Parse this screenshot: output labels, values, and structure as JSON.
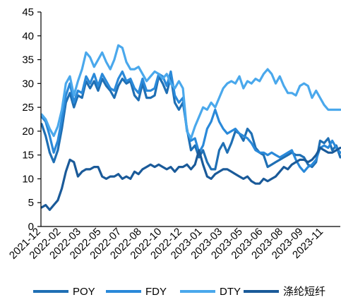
{
  "chart_data": {
    "type": "line",
    "title": "",
    "xlabel": "",
    "ylabel": "",
    "ylim": [
      0,
      45
    ],
    "yticks": [
      0,
      5,
      10,
      15,
      20,
      25,
      30,
      35,
      40,
      45
    ],
    "x_tick_labels": [
      "2021-12",
      "2022-02",
      "2022-03",
      "2022-05",
      "2022-07",
      "2022-08",
      "2022-10",
      "2022-12",
      "2023-01",
      "2023-03",
      "2023-05",
      "2023-06",
      "2023-08",
      "2023-09",
      "2023-11"
    ],
    "grid": false,
    "legend_position": "bottom",
    "series": [
      {
        "name": "POY",
        "color": "#1f6fb4",
        "values": [
          21.5,
          19.0,
          15.5,
          13.5,
          16.0,
          20.5,
          26.0,
          28.0,
          25.0,
          27.5,
          27.0,
          30.5,
          29.0,
          30.5,
          28.5,
          31.0,
          29.5,
          28.5,
          27.0,
          29.5,
          31.0,
          30.0,
          30.5,
          27.5,
          26.5,
          30.0,
          27.0,
          27.0,
          27.5,
          31.5,
          30.0,
          28.0,
          31.5,
          26.0,
          24.5,
          26.0,
          20.5,
          16.0,
          17.0,
          14.5,
          16.0,
          13.5,
          12.0,
          12.0,
          16.0,
          17.5,
          15.5,
          17.5,
          20.0,
          19.5,
          18.0,
          20.5,
          19.5,
          16.5,
          15.5,
          15.0,
          12.5,
          13.0,
          13.5,
          14.0,
          14.5,
          15.0,
          15.5,
          15.0,
          15.0,
          14.5,
          13.0,
          12.5,
          13.5,
          18.0,
          17.5,
          18.5,
          16.0,
          17.0,
          14.5
        ]
      },
      {
        "name": "FDY",
        "color": "#2a89d9",
        "values": [
          23.0,
          22.0,
          19.0,
          15.5,
          18.0,
          22.5,
          27.5,
          30.0,
          26.0,
          28.5,
          28.0,
          31.5,
          30.0,
          32.0,
          29.5,
          32.0,
          30.5,
          29.0,
          28.5,
          31.0,
          32.5,
          30.5,
          31.0,
          29.0,
          28.0,
          31.0,
          28.5,
          28.5,
          29.0,
          32.0,
          31.5,
          29.5,
          32.5,
          27.5,
          26.0,
          27.0,
          20.0,
          18.0,
          18.5,
          15.5,
          17.0,
          20.5,
          22.0,
          24.5,
          22.0,
          20.5,
          19.5,
          20.0,
          20.5,
          19.5,
          19.0,
          18.5,
          17.5,
          16.0,
          15.5,
          15.5,
          15.0,
          15.5,
          15.0,
          14.5,
          15.0,
          15.5,
          16.0,
          14.0,
          12.5,
          11.5,
          12.5,
          13.0,
          14.0,
          16.5,
          17.0,
          16.5,
          18.0,
          16.5,
          15.5
        ]
      },
      {
        "name": "DTY",
        "color": "#4aa8ec",
        "values": [
          23.5,
          22.5,
          20.5,
          19.0,
          21.0,
          24.5,
          30.0,
          31.5,
          27.5,
          30.5,
          33.0,
          36.5,
          35.5,
          33.5,
          35.0,
          36.5,
          34.5,
          33.0,
          35.0,
          38.0,
          37.5,
          34.5,
          33.0,
          33.0,
          33.5,
          32.0,
          30.5,
          31.5,
          32.5,
          32.0,
          31.0,
          32.0,
          30.0,
          29.0,
          30.5,
          29.0,
          20.0,
          18.5,
          21.0,
          23.0,
          25.0,
          24.5,
          26.0,
          25.0,
          27.0,
          29.0,
          30.0,
          30.5,
          30.0,
          31.5,
          29.0,
          30.5,
          30.0,
          31.0,
          30.5,
          32.0,
          33.0,
          32.0,
          30.0,
          31.5,
          29.5,
          28.0,
          28.0,
          27.5,
          29.5,
          30.0,
          29.5,
          27.0,
          28.5,
          27.0,
          25.5,
          24.5,
          24.5,
          24.5,
          24.5
        ]
      },
      {
        "name": "涤纶短纤",
        "color": "#1a5a99",
        "values": [
          4.0,
          4.5,
          3.5,
          4.5,
          5.5,
          8.0,
          11.5,
          14.0,
          13.5,
          10.5,
          11.5,
          12.0,
          12.0,
          12.5,
          12.5,
          10.5,
          10.0,
          10.5,
          10.5,
          11.0,
          10.0,
          10.5,
          10.0,
          11.5,
          11.0,
          12.0,
          12.5,
          13.0,
          12.5,
          13.0,
          12.5,
          12.0,
          12.5,
          11.5,
          12.5,
          12.5,
          13.0,
          12.0,
          13.0,
          16.0,
          13.0,
          10.5,
          10.0,
          11.0,
          11.5,
          12.0,
          12.0,
          11.5,
          11.0,
          10.5,
          10.0,
          10.5,
          9.5,
          9.0,
          9.0,
          10.0,
          9.5,
          10.0,
          10.5,
          11.5,
          12.5,
          12.0,
          13.0,
          13.5,
          14.0,
          14.0,
          13.5,
          14.0,
          15.0,
          16.5,
          16.0,
          15.5,
          15.5,
          16.0,
          16.5
        ]
      }
    ]
  }
}
